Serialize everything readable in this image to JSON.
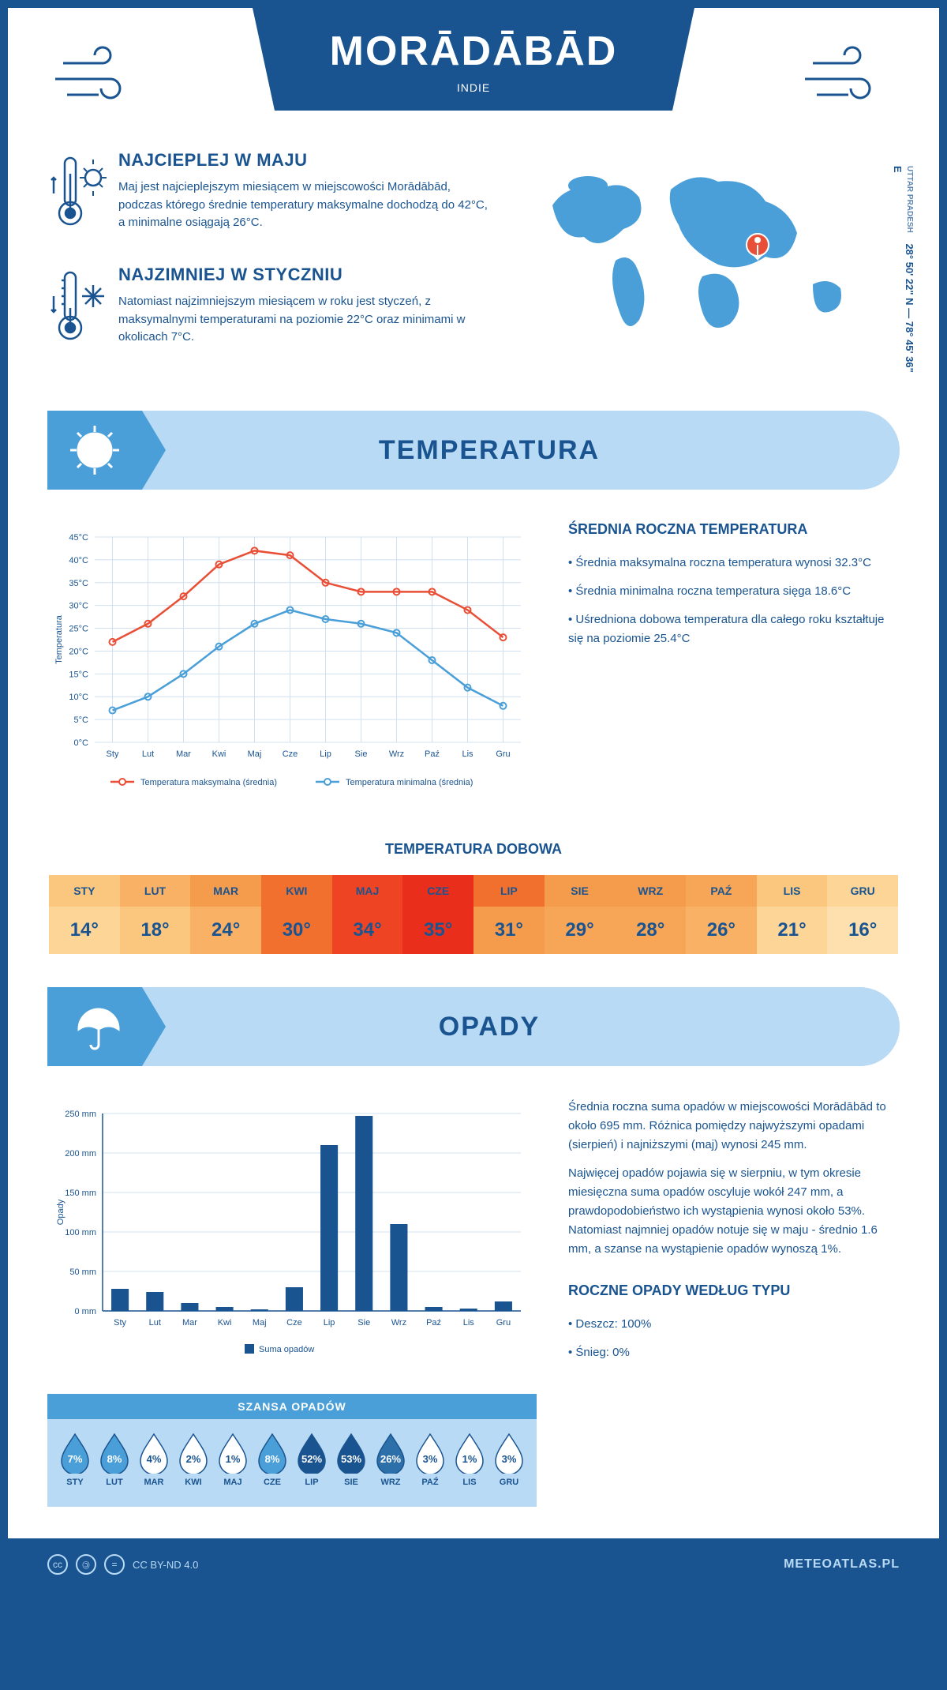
{
  "header": {
    "title": "MORĀDĀBĀD",
    "subtitle": "INDIE"
  },
  "location": {
    "region": "UTTAR PRADESH",
    "coords": "28° 50' 22\" N — 78° 45' 36\" E",
    "marker_color": "#e94f37"
  },
  "facts": {
    "hot": {
      "title": "NAJCIEPLEJ W MAJU",
      "body": "Maj jest najcieplejszym miesiącem w miejscowości Morādābād, podczas którego średnie temperatury maksymalne dochodzą do 42°C, a minimalne osiągają 26°C."
    },
    "cold": {
      "title": "NAJZIMNIEJ W STYCZNIU",
      "body": "Natomiast najzimniejszym miesiącem w roku jest styczeń, z maksymalnymi temperaturami na poziomie 22°C oraz minimami w okolicach 7°C."
    }
  },
  "temperature": {
    "section_title": "TEMPERATURA",
    "chart": {
      "type": "line",
      "months": [
        "Sty",
        "Lut",
        "Mar",
        "Kwi",
        "Maj",
        "Cze",
        "Lip",
        "Sie",
        "Wrz",
        "Paź",
        "Lis",
        "Gru"
      ],
      "max_series": [
        22,
        26,
        32,
        39,
        42,
        41,
        35,
        33,
        33,
        33,
        29,
        23
      ],
      "min_series": [
        7,
        10,
        15,
        21,
        26,
        29,
        27,
        26,
        24,
        18,
        12,
        8
      ],
      "max_color": "#e94f37",
      "min_color": "#4a9fd8",
      "ylabel": "Temperatura",
      "ylim": [
        0,
        45
      ],
      "ytick_step": 5,
      "grid_color": "#d0e0f0",
      "legend_max": "Temperatura maksymalna (średnia)",
      "legend_min": "Temperatura minimalna (średnia)",
      "label_fontsize": 11
    },
    "summary": {
      "heading": "ŚREDNIA ROCZNA TEMPERATURA",
      "items": [
        "Średnia maksymalna roczna temperatura wynosi 32.3°C",
        "Średnia minimalna roczna temperatura sięga 18.6°C",
        "Uśredniona dobowa temperatura dla całego roku kształtuje się na poziomie 25.4°C"
      ]
    },
    "daily": {
      "heading": "TEMPERATURA DOBOWA",
      "months": [
        "STY",
        "LUT",
        "MAR",
        "KWI",
        "MAJ",
        "CZE",
        "LIP",
        "SIE",
        "WRZ",
        "PAŹ",
        "LIS",
        "GRU"
      ],
      "values": [
        "14°",
        "18°",
        "24°",
        "30°",
        "34°",
        "35°",
        "31°",
        "29°",
        "28°",
        "26°",
        "21°",
        "16°"
      ],
      "head_colors": [
        "#fbc77e",
        "#f9b165",
        "#f59b4c",
        "#f2702e",
        "#ef4423",
        "#e92e1c",
        "#f2702e",
        "#f59b4c",
        "#f59b4c",
        "#f7a557",
        "#fbc77e",
        "#fcd597"
      ],
      "body_colors": [
        "#fcd597",
        "#fbc77e",
        "#f9b165",
        "#f2702e",
        "#ef4423",
        "#e92e1c",
        "#f59b4c",
        "#f7a557",
        "#f7a557",
        "#f9b165",
        "#fcd597",
        "#fde0ae"
      ]
    }
  },
  "precipitation": {
    "section_title": "OPADY",
    "chart": {
      "type": "bar",
      "months": [
        "Sty",
        "Lut",
        "Mar",
        "Kwi",
        "Maj",
        "Cze",
        "Lip",
        "Sie",
        "Wrz",
        "Paź",
        "Lis",
        "Gru"
      ],
      "values": [
        28,
        24,
        10,
        5,
        2,
        30,
        210,
        247,
        110,
        5,
        3,
        12
      ],
      "bar_color": "#1a5490",
      "ylabel": "Opady",
      "ylim": [
        0,
        250
      ],
      "ytick_step": 50,
      "grid_color": "#d0e0f0",
      "legend": "Suma opadów",
      "label_fontsize": 11
    },
    "summary": {
      "p1": "Średnia roczna suma opadów w miejscowości Morādābād to około 695 mm. Różnica pomiędzy najwyższymi opadami (sierpień) i najniższymi (maj) wynosi 245 mm.",
      "p2": "Najwięcej opadów pojawia się w sierpniu, w tym okresie miesięczna suma opadów oscyluje wokół 247 mm, a prawdopodobieństwo ich wystąpienia wynosi około 53%. Natomiast najmniej opadów notuje się w maju - średnio 1.6 mm, a szanse na wystąpienie opadów wynoszą 1%."
    },
    "chance": {
      "heading": "SZANSA OPADÓW",
      "months": [
        "STY",
        "LUT",
        "MAR",
        "KWI",
        "MAJ",
        "CZE",
        "LIP",
        "SIE",
        "WRZ",
        "PAŹ",
        "LIS",
        "GRU"
      ],
      "pct": [
        "7%",
        "8%",
        "4%",
        "2%",
        "1%",
        "8%",
        "52%",
        "53%",
        "26%",
        "3%",
        "1%",
        "3%"
      ],
      "fill_colors": [
        "#4a9fd8",
        "#4a9fd8",
        "#ffffff",
        "#ffffff",
        "#ffffff",
        "#4a9fd8",
        "#1a5490",
        "#1a5490",
        "#2d6fa8",
        "#ffffff",
        "#ffffff",
        "#ffffff"
      ],
      "text_colors": [
        "#ffffff",
        "#ffffff",
        "#1a5490",
        "#1a5490",
        "#1a5490",
        "#ffffff",
        "#ffffff",
        "#ffffff",
        "#ffffff",
        "#1a5490",
        "#1a5490",
        "#1a5490"
      ]
    },
    "by_type": {
      "heading": "ROCZNE OPADY WEDŁUG TYPU",
      "items": [
        "Deszcz: 100%",
        "Śnieg: 0%"
      ]
    }
  },
  "footer": {
    "license": "CC BY-ND 4.0",
    "brand": "METEOATLAS.PL"
  },
  "palette": {
    "primary": "#1a5490",
    "light": "#b8daf5",
    "mid": "#4a9fd8"
  }
}
